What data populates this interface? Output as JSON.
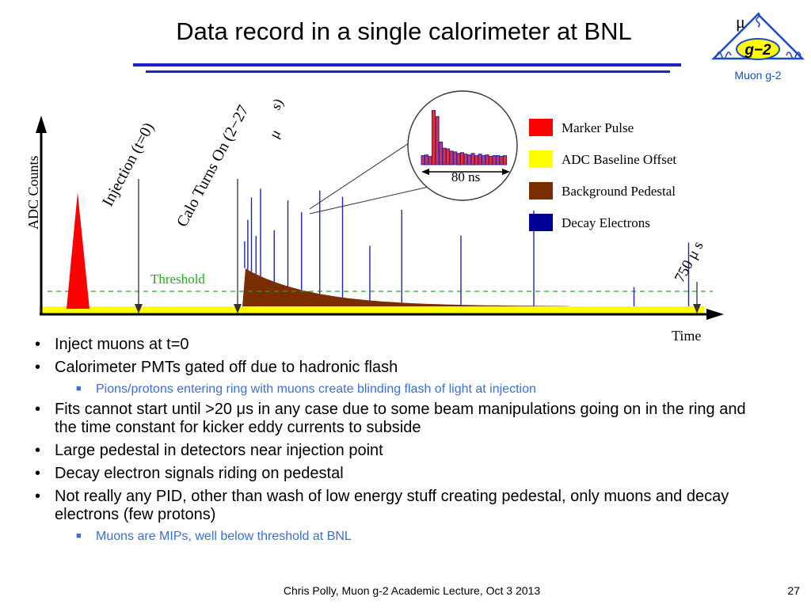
{
  "slide": {
    "title": "Data record in a single calorimeter at BNL",
    "footer": "Chris Polly, Muon g-2 Academic Lecture, Oct 3 2013",
    "page_number": "27"
  },
  "colors": {
    "title_rule": "#1f1fcc",
    "sub_bullet_text": "#3a6fd8",
    "marker_pulse": "#ff0000",
    "baseline": "#ffff00",
    "pedestal": "#7a2d00",
    "decay_electrons": "#2222bb",
    "threshold": "#22aa22",
    "logo": "#1a4ac8"
  },
  "logo": {
    "mu": "μ",
    "badge": "g−2",
    "caption": "Muon g-2"
  },
  "diagram": {
    "y_axis_label": "ADC Counts",
    "x_axis_label": "Time",
    "threshold_label": "Threshold",
    "injection_label": "Injection (t=0)",
    "calo_on_label": "Calo Turns On (2−27",
    "calo_on_unit": "μ",
    "calo_on_paren": "s)",
    "end_label": "750 μ s",
    "inset_label": "80 ns",
    "legend": [
      {
        "label": "Marker Pulse",
        "color": "#ff0000"
      },
      {
        "label": "ADC Baseline Offset",
        "color": "#ffff00"
      },
      {
        "label": "Background Pedestal",
        "color": "#7a2d00"
      },
      {
        "label": "Decay Electrons",
        "color": "#000099"
      }
    ],
    "inset_bars": [
      12,
      13,
      11,
      72,
      64,
      30,
      22,
      21,
      18,
      17,
      15,
      16,
      14,
      13,
      15,
      12,
      14,
      12,
      13,
      11,
      12,
      12,
      11,
      12
    ],
    "pulses": [
      {
        "t": 0.25,
        "h": 0.3
      },
      {
        "t": 0.6,
        "h": 0.55
      },
      {
        "t": 1.0,
        "h": 0.8
      },
      {
        "t": 1.5,
        "h": 0.4
      },
      {
        "t": 2.0,
        "h": 0.9
      },
      {
        "t": 3.5,
        "h": 0.5
      },
      {
        "t": 5.0,
        "h": 0.8
      },
      {
        "t": 6.5,
        "h": 0.7
      },
      {
        "t": 8.5,
        "h": 0.9
      },
      {
        "t": 11.0,
        "h": 0.85
      },
      {
        "t": 14.0,
        "h": 0.45
      },
      {
        "t": 17.5,
        "h": 0.75
      },
      {
        "t": 24.0,
        "h": 0.55
      },
      {
        "t": 32.0,
        "h": 0.75
      },
      {
        "t": 43.0,
        "h": 0.15
      },
      {
        "t": 49.0,
        "h": 0.5
      }
    ]
  },
  "bullets": [
    {
      "level": 1,
      "text": "Inject muons at t=0"
    },
    {
      "level": 1,
      "text": "Calorimeter PMTs gated off due to hadronic flash"
    },
    {
      "level": 2,
      "text": "Pions/protons entering ring with muons create blinding flash of light at injection"
    },
    {
      "level": 1,
      "text": "Fits cannot start until >20 μs in any case due to some beam manipulations going on in the ring and the time constant for kicker eddy currents to subside"
    },
    {
      "level": 1,
      "text": "Large pedestal in detectors near injection point"
    },
    {
      "level": 1,
      "text": "Decay electron signals riding on pedestal"
    },
    {
      "level": 1,
      "text": "Not really any PID, other than wash of low energy stuff creating pedestal, only muons and decay electrons (few protons)"
    },
    {
      "level": 2,
      "text": "Muons are MIPs, well below threshold at BNL"
    }
  ]
}
